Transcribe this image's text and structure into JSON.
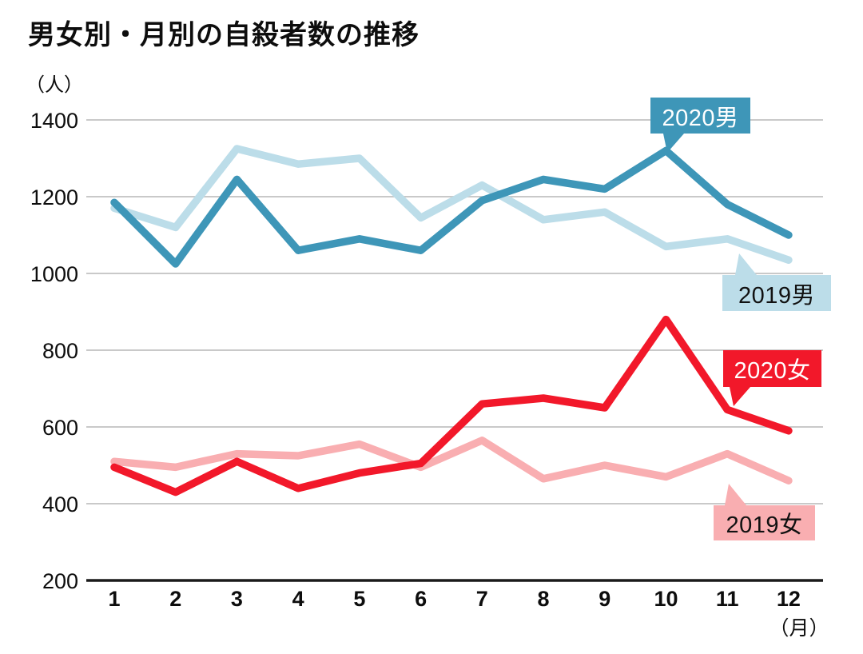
{
  "title": "男女別・月別の自殺者数の推移",
  "y_axis_unit": "（人）",
  "x_axis_unit": "（月）",
  "colors": {
    "male_2020": "#3e96b8",
    "male_2019": "#bcdde9",
    "female_2020": "#f2182a",
    "female_2019": "#f9aeb1",
    "gridline": "#c9c9c9",
    "axis_line": "#1a1a1a",
    "text": "#0d0d0d"
  },
  "chart_data": {
    "type": "line",
    "x": [
      1,
      2,
      3,
      4,
      5,
      6,
      7,
      8,
      9,
      10,
      11,
      12
    ],
    "xlabel": "月",
    "ylabel": "人",
    "ylim": [
      200,
      1400
    ],
    "y_ticks": [
      1400,
      1200,
      1000,
      800,
      600,
      400,
      200
    ],
    "grid": true,
    "legend_position": "inline-callouts",
    "series": [
      {
        "name": "2019男",
        "color": "#bcdde9",
        "label_text_color": "#111111",
        "values": [
          1170,
          1120,
          1325,
          1285,
          1300,
          1145,
          1230,
          1140,
          1160,
          1070,
          1090,
          1035
        ]
      },
      {
        "name": "2020男",
        "color": "#3e96b8",
        "label_text_color": "#ffffff",
        "values": [
          1185,
          1025,
          1245,
          1060,
          1090,
          1060,
          1190,
          1245,
          1220,
          1320,
          1180,
          1100
        ]
      },
      {
        "name": "2019女",
        "color": "#f9aeb1",
        "label_text_color": "#111111",
        "values": [
          510,
          495,
          530,
          525,
          555,
          495,
          565,
          465,
          500,
          470,
          530,
          460
        ]
      },
      {
        "name": "2020女",
        "color": "#f2182a",
        "label_text_color": "#ffffff",
        "values": [
          495,
          430,
          510,
          440,
          480,
          505,
          660,
          675,
          650,
          880,
          645,
          590
        ]
      }
    ]
  },
  "callouts": {
    "male_2020_text": "2020男",
    "male_2019_text": "2019男",
    "female_2020_text": "2020女",
    "female_2019_text": "2019女"
  }
}
